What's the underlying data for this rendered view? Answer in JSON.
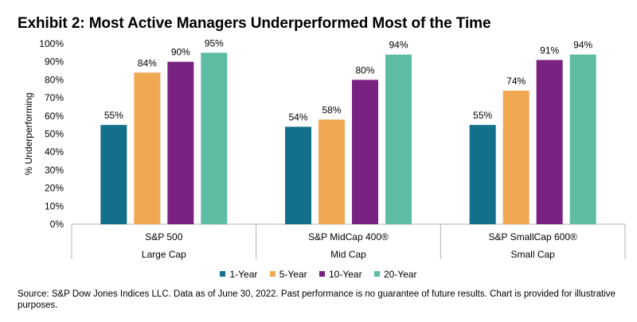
{
  "title": "Exhibit 2: Most Active Managers Underperformed Most of the Time",
  "source_note": "Source: S&P Dow Jones Indices LLC.  Data as of June 30, 2022.  Past performance is no guarantee of future results.  Chart is provided for illustrative purposes.",
  "chart_data": {
    "type": "bar",
    "title": "Exhibit 2: Most Active Managers Underperformed Most of the Time",
    "ylabel": "% Underperforming",
    "xlabel": "",
    "ylim": [
      0,
      100
    ],
    "ytick_labels": [
      "0%",
      "10%",
      "20%",
      "30%",
      "40%",
      "50%",
      "60%",
      "70%",
      "80%",
      "90%",
      "100%"
    ],
    "grid": false,
    "legend_position": "bottom",
    "categories": [
      "S&P 500",
      "S&P MidCap 400®",
      "S&P SmallCap 600®"
    ],
    "category_groups": [
      "Large Cap",
      "Mid Cap",
      "Small Cap"
    ],
    "series": [
      {
        "name": "1-Year",
        "color": "#136f8a",
        "values": [
          55,
          54,
          55
        ],
        "labels": [
          "55%",
          "54%",
          "55%"
        ]
      },
      {
        "name": "5-Year",
        "color": "#f0a852",
        "values": [
          84,
          58,
          74
        ],
        "labels": [
          "84%",
          "58%",
          "74%"
        ]
      },
      {
        "name": "10-Year",
        "color": "#7a2282",
        "values": [
          90,
          80,
          91
        ],
        "labels": [
          "90%",
          "80%",
          "91%"
        ]
      },
      {
        "name": "20-Year",
        "color": "#5dbca2",
        "values": [
          95,
          94,
          94
        ],
        "labels": [
          "95%",
          "94%",
          "94%"
        ]
      }
    ]
  }
}
